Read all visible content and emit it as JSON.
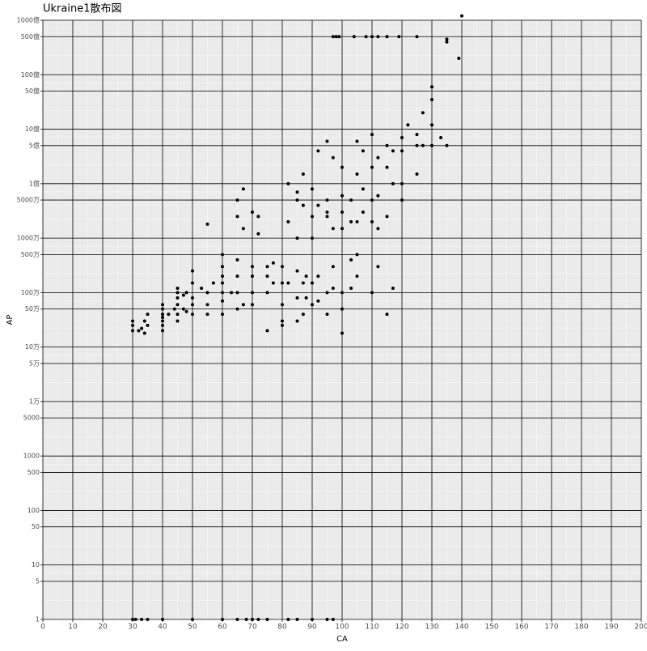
{
  "chart_data": {
    "type": "scatter",
    "title": "Ukraine1散布図",
    "x_label": "CA",
    "y_label": "AP",
    "color": "#000000",
    "log_y": true,
    "grid": true,
    "xlim": [
      0,
      200
    ],
    "xticks": [
      0,
      10,
      20,
      30,
      40,
      50,
      60,
      70,
      80,
      90,
      100,
      110,
      120,
      130,
      140,
      150,
      160,
      170,
      180,
      190,
      200
    ],
    "ylim": [
      1,
      100000000000
    ],
    "yticks": [
      1,
      5,
      10,
      50,
      100,
      500,
      1000,
      5000,
      {
        "value": 10000,
        "label": "1万"
      },
      {
        "value": 50000,
        "label": "5万"
      },
      {
        "value": 100000,
        "label": "10万"
      },
      {
        "value": 500000,
        "label": "50万"
      },
      {
        "value": 1000000,
        "label": "100万"
      },
      {
        "value": 5000000,
        "label": "500万"
      },
      {
        "value": 10000000,
        "label": "1000万"
      },
      {
        "value": 50000000,
        "label": "5000万"
      },
      {
        "value": 100000000,
        "label": "1億"
      },
      {
        "value": 500000000,
        "label": "5億"
      },
      {
        "value": 1000000000,
        "label": "10億"
      },
      {
        "value": 5000000000,
        "label": "50億"
      },
      {
        "value": 10000000000,
        "label": "100億"
      },
      {
        "value": 50000000000,
        "label": "500億"
      },
      {
        "value": 100000000000,
        "label": "1000億"
      }
    ],
    "x": [
      97,
      98,
      99,
      104,
      108,
      110,
      112,
      115,
      119,
      125,
      30,
      31,
      33,
      35,
      40,
      50,
      60,
      65,
      68,
      70,
      72,
      75,
      82,
      85,
      90,
      95,
      97,
      30,
      30,
      30,
      32,
      33,
      34,
      34,
      35,
      35,
      40,
      40,
      40,
      40,
      40,
      40,
      40,
      42,
      44,
      45,
      45,
      45,
      45,
      45,
      45,
      47,
      47,
      48,
      48,
      50,
      50,
      50,
      50,
      50,
      53,
      55,
      55,
      55,
      55,
      57,
      60,
      60,
      60,
      60,
      60,
      60,
      60,
      63,
      65,
      65,
      65,
      65,
      65,
      65,
      67,
      67,
      67,
      70,
      70,
      70,
      70,
      70,
      72,
      72,
      75,
      75,
      75,
      75,
      77,
      77,
      80,
      80,
      80,
      80,
      80,
      82,
      82,
      82,
      85,
      85,
      85,
      85,
      85,
      85,
      87,
      87,
      87,
      87,
      88,
      88,
      90,
      90,
      90,
      90,
      90,
      92,
      92,
      92,
      92,
      95,
      95,
      95,
      95,
      95,
      95,
      97,
      97,
      97,
      97,
      100,
      100,
      100,
      100,
      100,
      100,
      100,
      103,
      103,
      103,
      103,
      105,
      105,
      105,
      105,
      105,
      107,
      107,
      107,
      110,
      110,
      110,
      110,
      110,
      112,
      112,
      112,
      112,
      115,
      115,
      115,
      115,
      117,
      117,
      117,
      120,
      120,
      120,
      120,
      122,
      125,
      125,
      125,
      127,
      127,
      130,
      130,
      130,
      130,
      133,
      135,
      135,
      135,
      139,
      140
    ],
    "values": [
      50000000000,
      50000000000,
      50000000000,
      50000000000,
      50000000000,
      50000000000,
      50000000000,
      50000000000,
      50000000000,
      50000000000,
      1,
      1,
      1,
      1,
      1,
      1,
      1,
      1,
      1,
      1,
      1,
      1,
      1,
      1,
      1,
      1,
      1,
      250000,
      200000,
      300000,
      200000,
      220000,
      300000,
      180000,
      400000,
      250000,
      200000,
      300000,
      400000,
      500000,
      600000,
      250000,
      350000,
      400000,
      500000,
      800000,
      1000000,
      600000,
      400000,
      1200000,
      300000,
      500000,
      900000,
      450000,
      1000000,
      600000,
      1500000,
      2500000,
      800000,
      400000,
      1200000,
      600000,
      1000000,
      18000000,
      400000,
      1500000,
      5000000,
      3000000,
      1000000,
      700000,
      400000,
      2000000,
      1500000,
      1000000,
      50000000,
      25000000,
      4000000,
      2000000,
      1000000,
      500000,
      15000000,
      80000000,
      600000,
      30000000,
      3000000,
      1000000,
      2000000,
      600000,
      25000000,
      12000000,
      3000000,
      2000000,
      1000000,
      200000,
      3500000,
      1500000,
      3000000,
      1500000,
      600000,
      250000,
      300000,
      100000000,
      20000000,
      1500000,
      70000000,
      50000000,
      10000000,
      2500000,
      800000,
      300000,
      150000000,
      40000000,
      1500000,
      400000,
      2000000,
      800000,
      80000000,
      25000000,
      10000000,
      1500000,
      600000,
      400000000,
      40000000,
      2000000,
      700000,
      600000000,
      50000000,
      30000000,
      25000000,
      1000000,
      400000,
      300000000,
      15000000,
      3000000,
      1200000,
      200000000,
      60000000,
      30000000,
      15000000,
      1000000,
      500000,
      180000,
      50000000,
      20000000,
      4000000,
      1200000,
      600000000,
      150000000,
      20000000,
      5000000,
      2000000,
      400000000,
      80000000,
      30000000,
      800000000,
      200000000,
      50000000,
      20000000,
      1000000,
      300000000,
      60000000,
      15000000,
      3000000,
      500000000,
      200000000,
      25000000,
      400000,
      400000000,
      100000000,
      1200000,
      700000000,
      400000000,
      100000000,
      50000000,
      1200000000,
      800000000,
      150000000,
      500000000,
      2000000000,
      500000000,
      6000000000,
      3500000000,
      500000000,
      1200000000,
      700000000,
      45000000000,
      40000000000,
      500000000,
      20000000000,
      120000000000
    ]
  }
}
